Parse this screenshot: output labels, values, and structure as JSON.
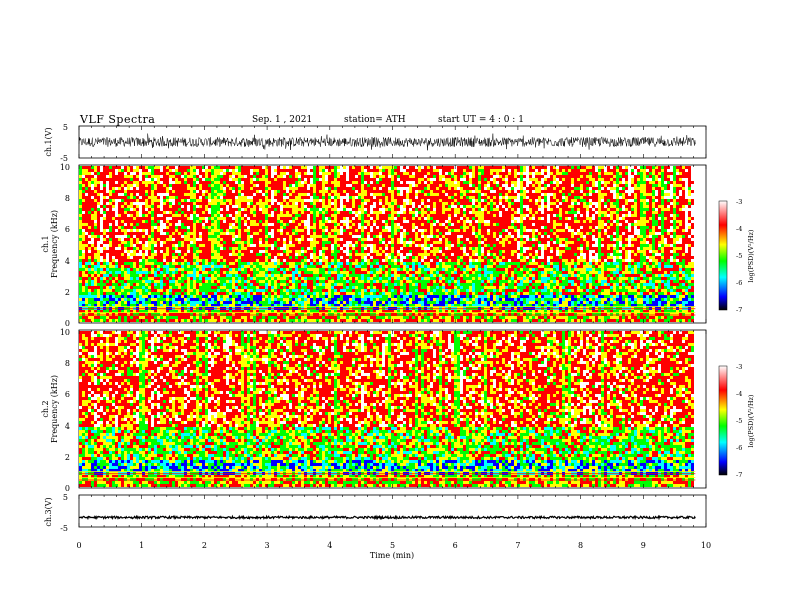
{
  "header": {
    "title": "VLF  Spectra",
    "date": "Sep. 1  , 2021",
    "station": "station= ATH",
    "start": "start  UT  =   4  : 0   : 1"
  },
  "chart_data": [
    {
      "type": "line",
      "panel": "ch1-waveform",
      "ylabel": "ch.1(V)",
      "yticks": [
        "5",
        "-5"
      ],
      "ylim": [
        -5,
        5
      ],
      "x_range": [
        0,
        9.83
      ],
      "amplitude_approx": 1.5
    },
    {
      "type": "heatmap",
      "panel": "ch1-spectrogram",
      "ylabel": "ch.1",
      "ylabel2": "Frequency  (kHz)",
      "yticks": [
        "10",
        "8",
        "6",
        "4",
        "2",
        "0"
      ],
      "ylim": [
        0,
        10
      ],
      "x_range": [
        0,
        9.83
      ],
      "colorbar": {
        "label": "log(PSD)(V²/Hz)",
        "ticks": [
          "-3",
          "-4",
          "-5",
          "-6",
          "-7"
        ],
        "range": [
          -7,
          -3
        ]
      },
      "colors": [
        "#000000",
        "#0000ff",
        "#00ffff",
        "#00ff00",
        "#ffff00",
        "#ff0000",
        "#ffffff"
      ]
    },
    {
      "type": "heatmap",
      "panel": "ch2-spectrogram",
      "ylabel": "ch.2",
      "ylabel2": "Frequency  (kHz)",
      "yticks": [
        "10",
        "8",
        "6",
        "4",
        "2",
        "0"
      ],
      "ylim": [
        0,
        10
      ],
      "x_range": [
        0,
        9.83
      ],
      "colorbar": {
        "label": "log(PSD)(V²/Hz)",
        "ticks": [
          "-3",
          "-4",
          "-5",
          "-6",
          "-7"
        ],
        "range": [
          -7,
          -3
        ]
      },
      "colors": [
        "#000000",
        "#0000ff",
        "#00ffff",
        "#00ff00",
        "#ffff00",
        "#ff0000",
        "#ffffff"
      ]
    },
    {
      "type": "line",
      "panel": "ch3-waveform",
      "ylabel": "ch.3(V)",
      "yticks": [
        "5",
        "-5"
      ],
      "ylim": [
        -5,
        5
      ],
      "x_range": [
        0,
        9.83
      ],
      "level_approx": -2,
      "xlabel": "Time  (min)",
      "xticks": [
        "0",
        "1",
        "2",
        "3",
        "4",
        "5",
        "6",
        "7",
        "8",
        "9",
        "10"
      ],
      "xlim": [
        0,
        10
      ]
    }
  ]
}
